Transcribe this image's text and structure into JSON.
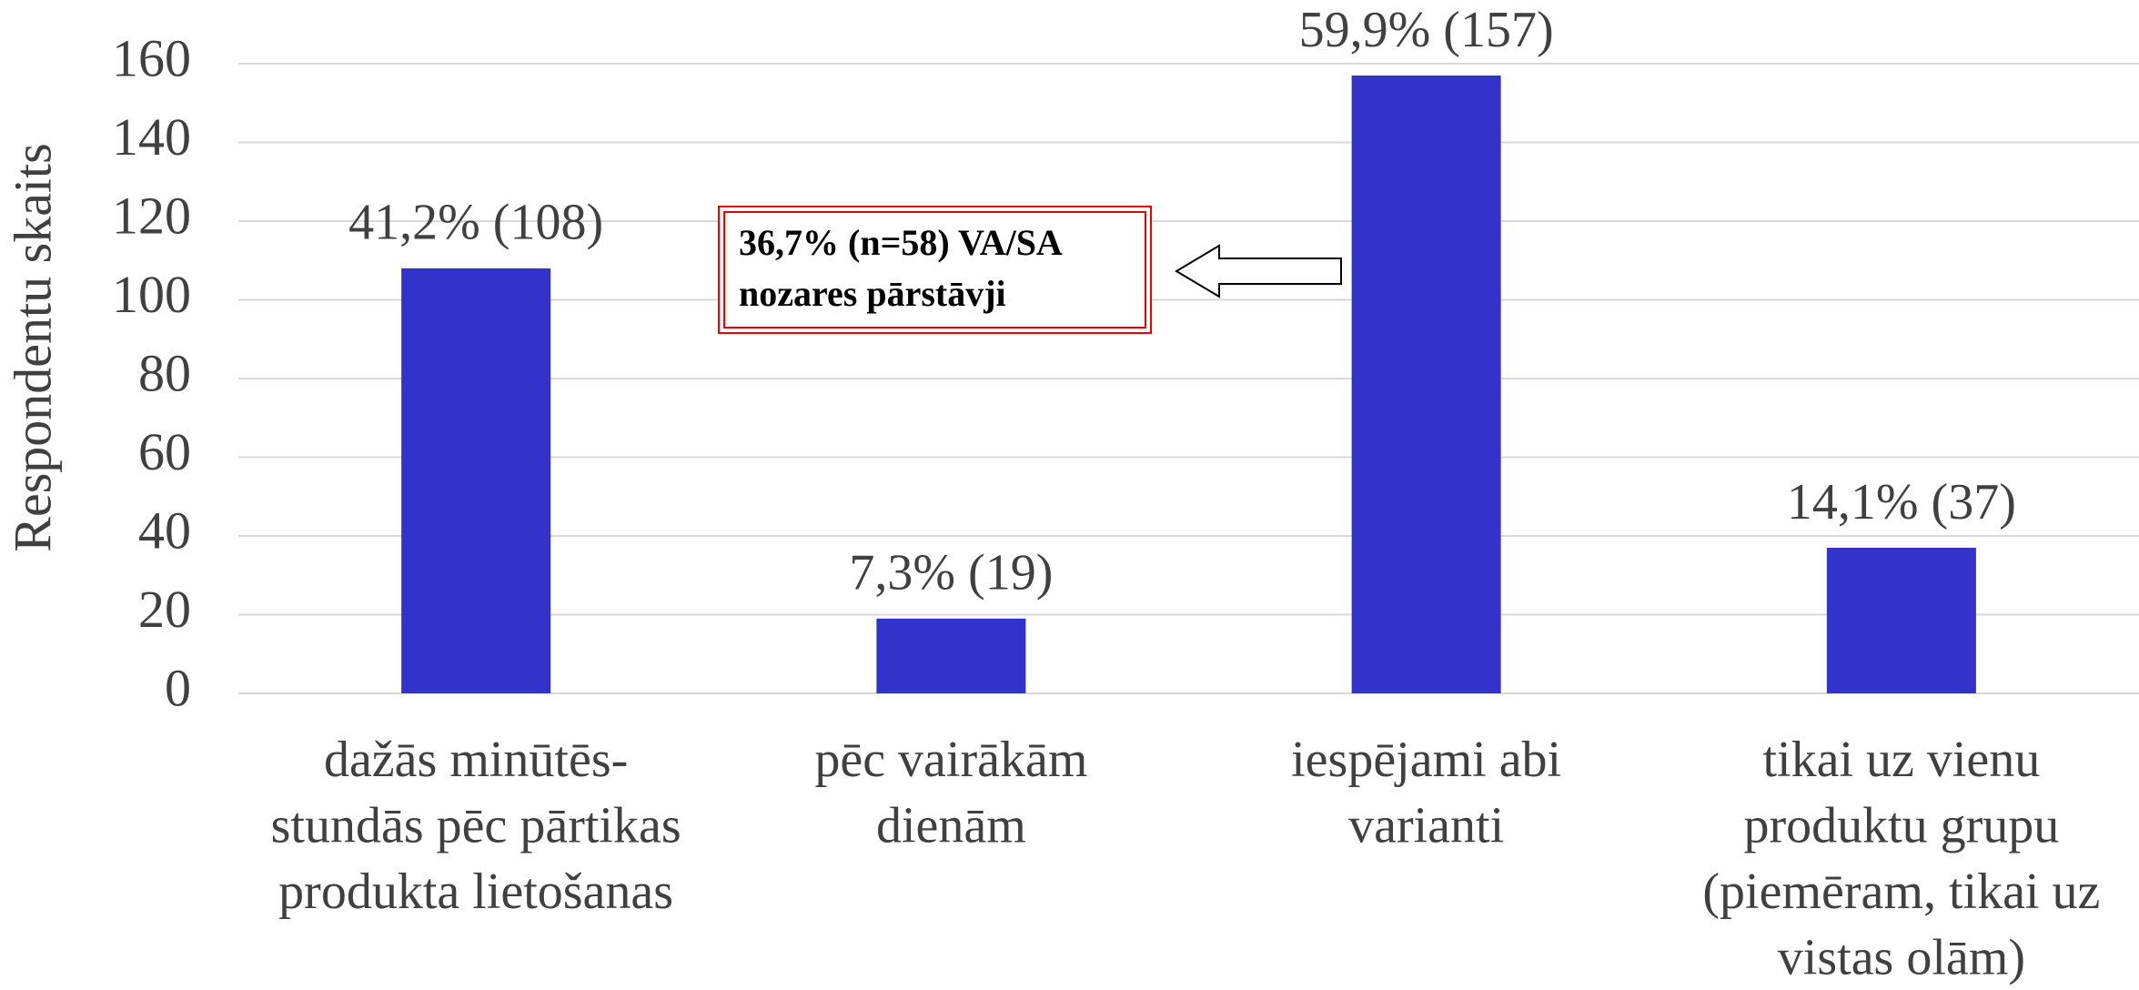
{
  "chart_data": {
    "type": "bar",
    "y_label": "Respondentu skaits",
    "categories": [
      [
        "dažās minūtēs-",
        "stundās pēc pārtikas",
        "produkta lietošanas"
      ],
      [
        "pēc vairākām",
        "dienām"
      ],
      [
        "iespējami abi",
        "varianti"
      ],
      [
        "tikai uz vienu",
        "produktu grupu",
        "(piemēram, tikai uz",
        "vistas olām)"
      ]
    ],
    "values": [
      108,
      19,
      157,
      37
    ],
    "value_labels": [
      "41,2% (108)",
      "7,3% (19)",
      "59,9% (157)",
      "14,1% (37)"
    ],
    "color": "#3333cc",
    "ylim": [
      0,
      160
    ],
    "yticks": [
      0,
      20,
      40,
      60,
      80,
      100,
      120,
      140,
      160
    ],
    "grid": true,
    "annotation": [
      "36,7% (n=58) VA/SA",
      "nozares pārstāvji"
    ]
  }
}
